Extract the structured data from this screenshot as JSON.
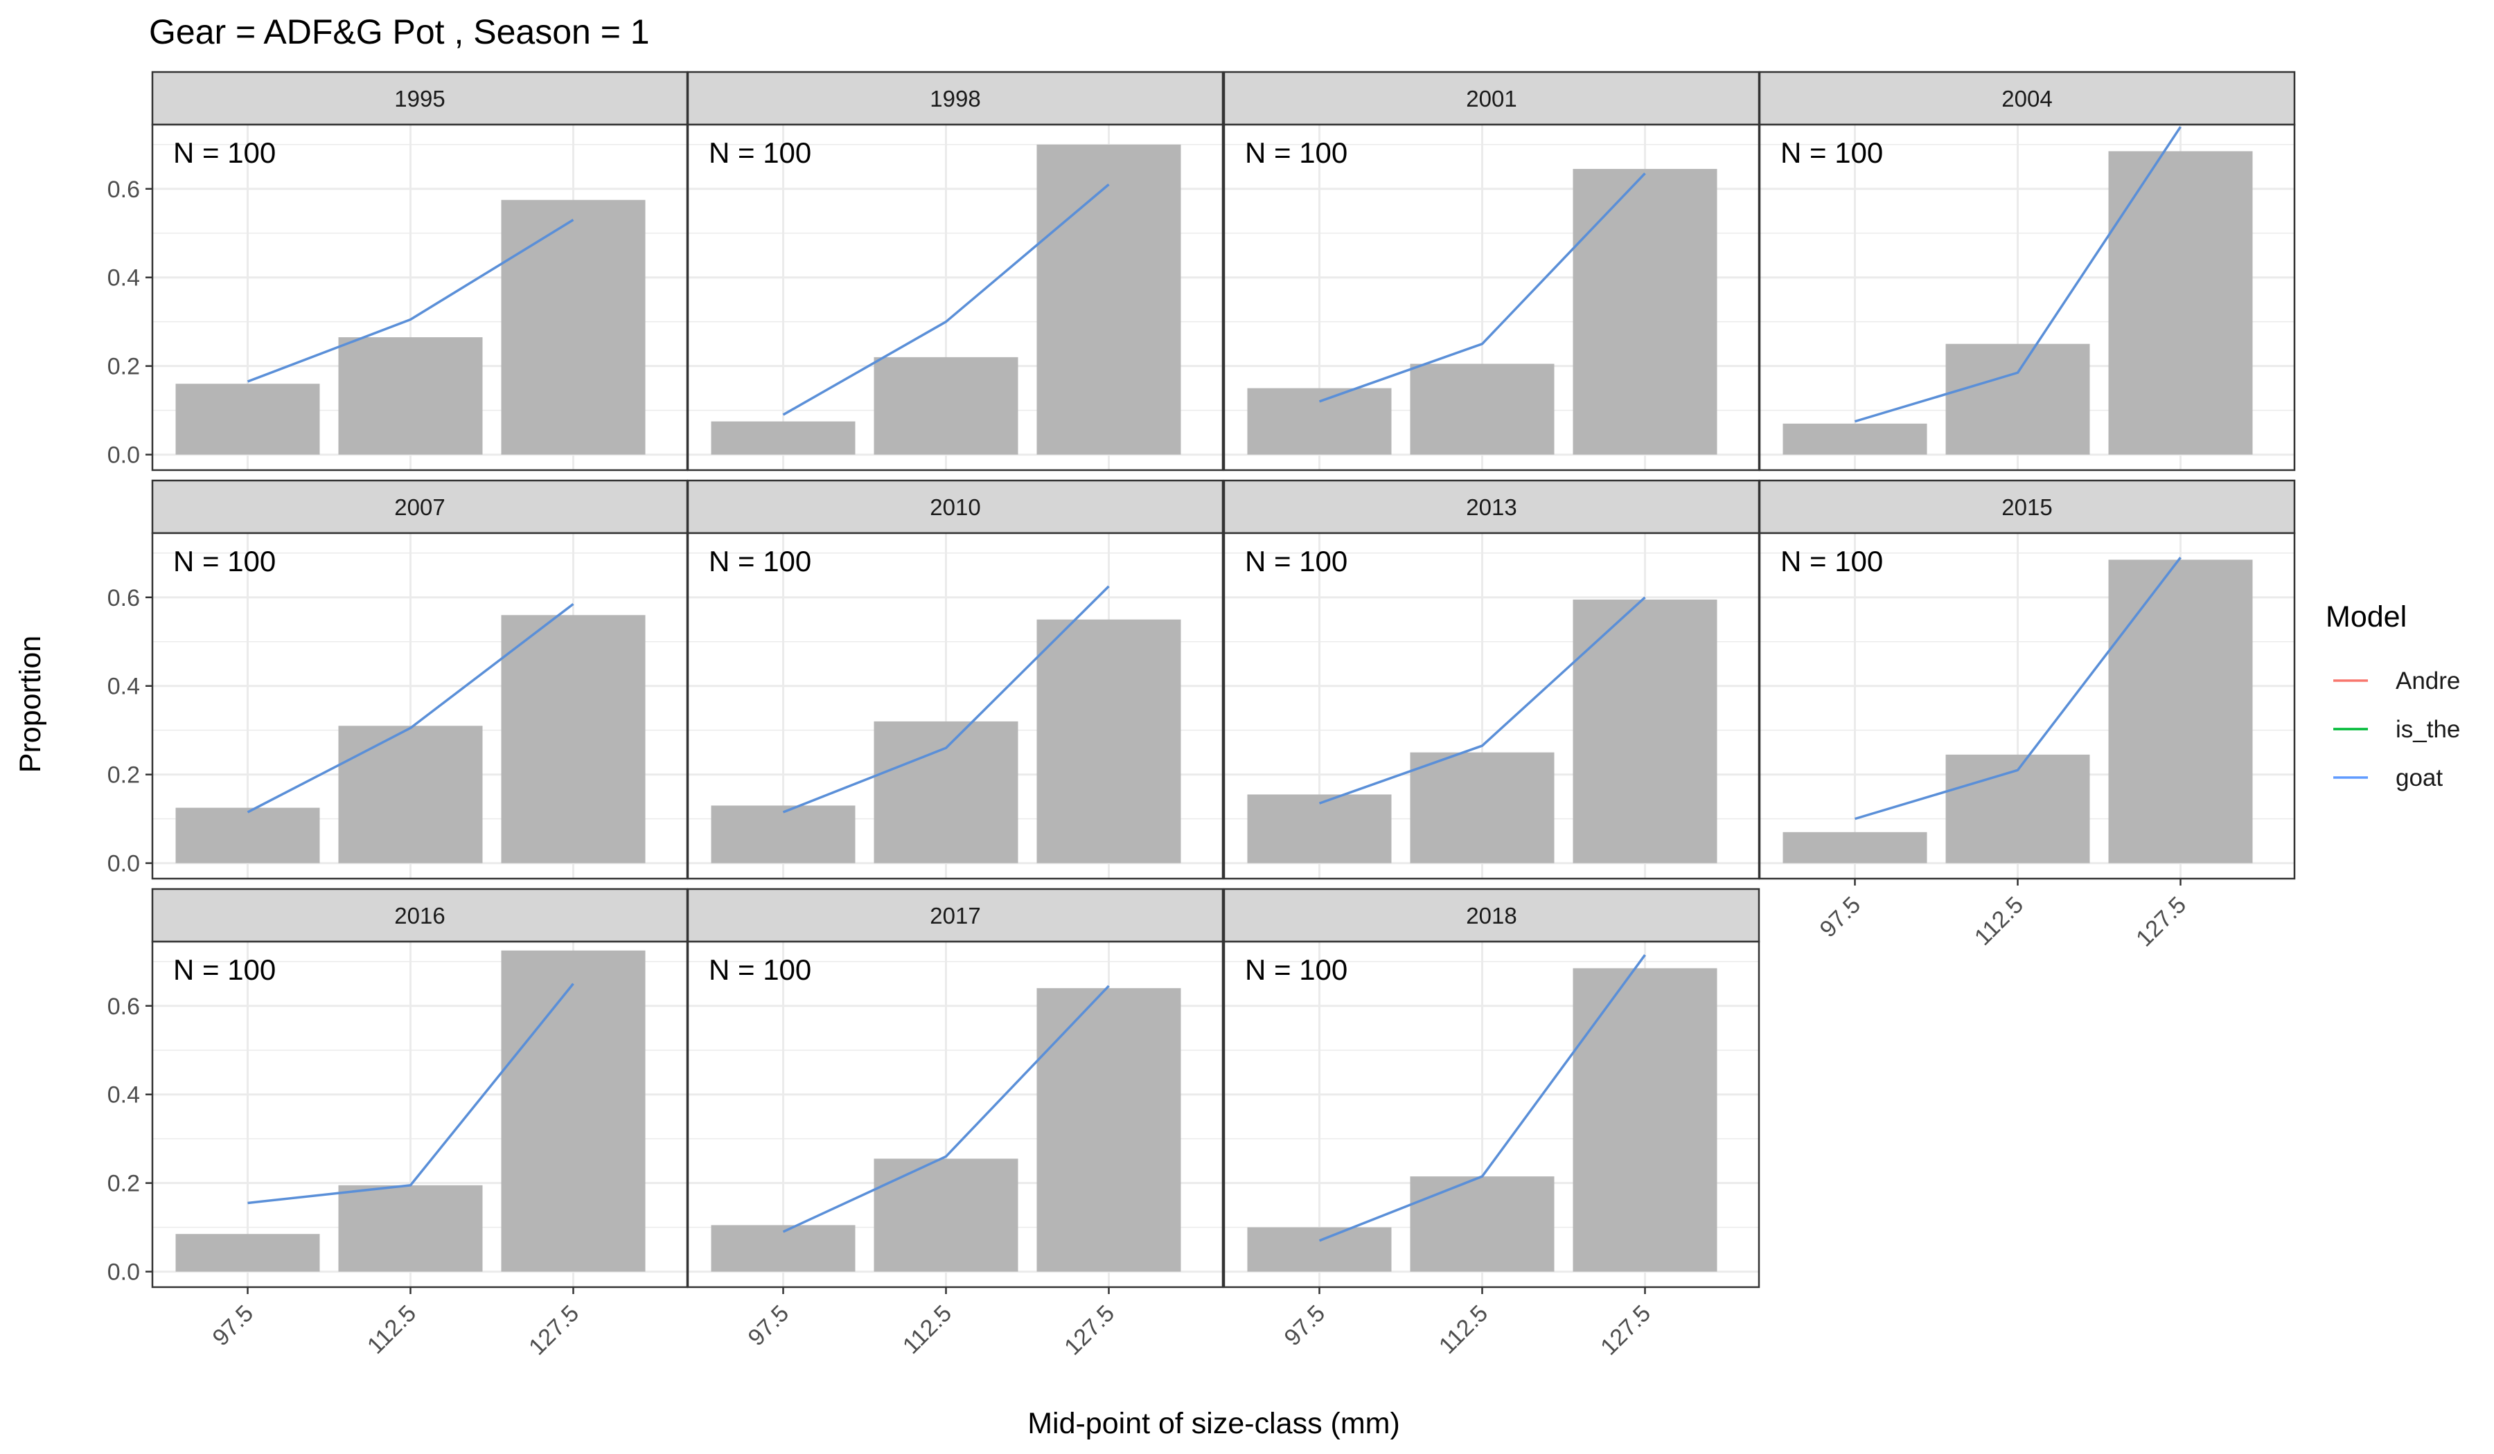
{
  "chart_data": {
    "type": "bar",
    "title": "Gear = ADF&G Pot , Season = 1",
    "xlabel": "Mid-point of size-class (mm)",
    "ylabel": "Proportion",
    "categories": [
      "97.5",
      "112.5",
      "127.5"
    ],
    "ylim": [
      -0.035,
      0.745
    ],
    "yticks": [
      0.0,
      0.2,
      0.4,
      0.6
    ],
    "ytick_labels": [
      "0.0",
      "0.2",
      "0.4",
      "0.6"
    ],
    "grid": true,
    "legend": {
      "title": "Model",
      "position": "right",
      "entries": [
        {
          "name": "Andre",
          "color": "#F8766D"
        },
        {
          "name": "is_the",
          "color": "#00BA38"
        },
        {
          "name": "goat",
          "color": "#619CFF"
        }
      ]
    },
    "colors": {
      "bar": "#b5b5b5",
      "line": "#5a8fd8",
      "strip": "#d6d6d6",
      "panel_border": "#333333",
      "grid": "#ebebeb"
    },
    "panels": [
      {
        "year": "1995",
        "annotation": "N = 100",
        "observed": [
          0.16,
          0.265,
          0.575
        ],
        "fitted": [
          0.165,
          0.305,
          0.53
        ]
      },
      {
        "year": "1998",
        "annotation": "N = 100",
        "observed": [
          0.075,
          0.22,
          0.7
        ],
        "fitted": [
          0.09,
          0.3,
          0.61
        ]
      },
      {
        "year": "2001",
        "annotation": "N = 100",
        "observed": [
          0.15,
          0.205,
          0.645
        ],
        "fitted": [
          0.12,
          0.25,
          0.635
        ]
      },
      {
        "year": "2004",
        "annotation": "N = 100",
        "observed": [
          0.07,
          0.25,
          0.685
        ],
        "fitted": [
          0.075,
          0.185,
          0.74
        ]
      },
      {
        "year": "2007",
        "annotation": "N = 100",
        "observed": [
          0.125,
          0.31,
          0.56
        ],
        "fitted": [
          0.115,
          0.305,
          0.585
        ]
      },
      {
        "year": "2010",
        "annotation": "N = 100",
        "observed": [
          0.13,
          0.32,
          0.55
        ],
        "fitted": [
          0.115,
          0.26,
          0.625
        ]
      },
      {
        "year": "2013",
        "annotation": "N = 100",
        "observed": [
          0.155,
          0.25,
          0.595
        ],
        "fitted": [
          0.135,
          0.265,
          0.6
        ]
      },
      {
        "year": "2015",
        "annotation": "N = 100",
        "observed": [
          0.07,
          0.245,
          0.685
        ],
        "fitted": [
          0.1,
          0.21,
          0.69
        ]
      },
      {
        "year": "2016",
        "annotation": "N = 100",
        "observed": [
          0.085,
          0.195,
          0.725
        ],
        "fitted": [
          0.155,
          0.195,
          0.65
        ]
      },
      {
        "year": "2017",
        "annotation": "N = 100",
        "observed": [
          0.105,
          0.255,
          0.64
        ],
        "fitted": [
          0.09,
          0.26,
          0.645
        ]
      },
      {
        "year": "2018",
        "annotation": "N = 100",
        "observed": [
          0.1,
          0.215,
          0.685
        ],
        "fitted": [
          0.07,
          0.215,
          0.715
        ]
      }
    ]
  }
}
